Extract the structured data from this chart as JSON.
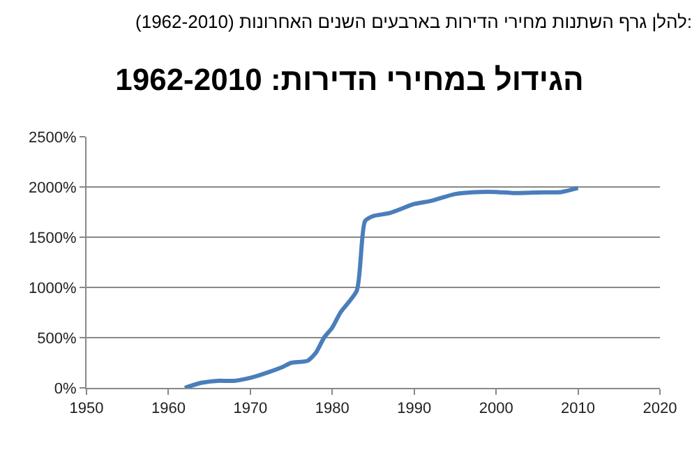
{
  "chart_data": {
    "type": "line",
    "title": "הגידול במחירי הדירות: 1962-2010",
    "annotations": [
      "להלן גרף השתנות מחירי הדירות בארבעים השנים האחרונות (1962-2010):"
    ],
    "x": [
      1962,
      1964,
      1966,
      1968,
      1970,
      1972,
      1974,
      1975,
      1977,
      1978,
      1979,
      1980,
      1981,
      1983,
      1984,
      1985,
      1987,
      1990,
      1992,
      1995,
      1998,
      2000,
      2002,
      2005,
      2008,
      2010
    ],
    "series": [
      {
        "color": "#4a7ebb",
        "values": [
          0,
          50,
          70,
          70,
          100,
          150,
          210,
          250,
          270,
          350,
          500,
          600,
          750,
          970,
          1660,
          1710,
          1740,
          1830,
          1860,
          1930,
          1950,
          1950,
          1940,
          1945,
          1950,
          1990
        ]
      }
    ],
    "xlim": [
      1950,
      2020
    ],
    "xticks": [
      1950,
      1960,
      1970,
      1980,
      1990,
      2000,
      2010,
      2020
    ],
    "ylim": [
      0,
      2500
    ],
    "yticks": [
      {
        "value": 0,
        "label": "0%"
      },
      {
        "value": 500,
        "label": "500%"
      },
      {
        "value": 1000,
        "label": "1000%"
      },
      {
        "value": 1500,
        "label": "1500%"
      },
      {
        "value": 2000,
        "label": "2000%"
      },
      {
        "value": 2500,
        "label": "2500%"
      }
    ],
    "grid": "y",
    "marker": "none",
    "line_style": "solid"
  }
}
